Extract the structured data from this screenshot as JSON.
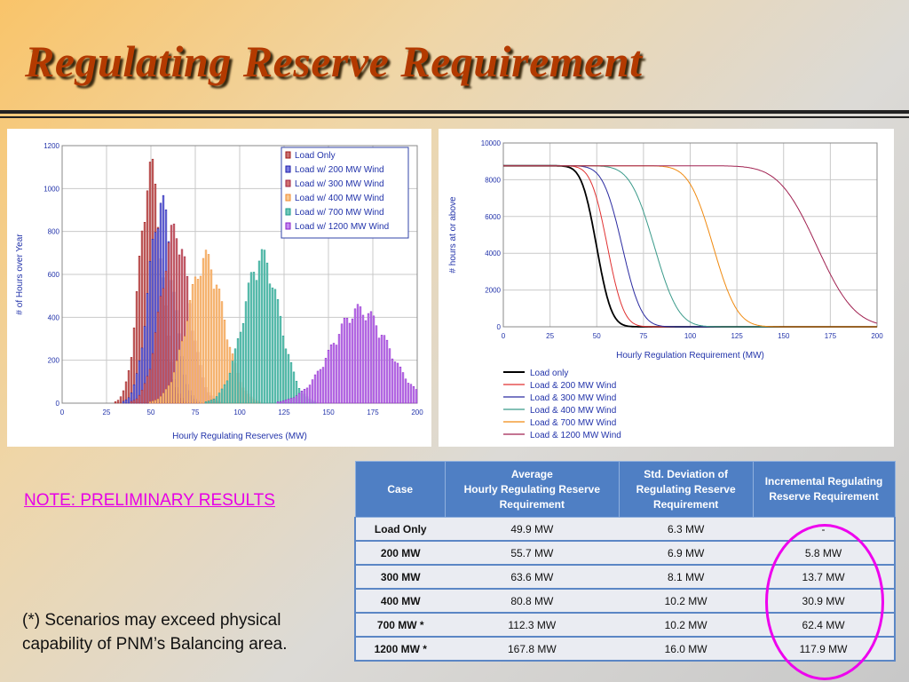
{
  "slide": {
    "title": "Regulating Reserve Requirement",
    "note": "NOTE: PRELIMINARY RESULTS",
    "footnote": "(*) Scenarios may exceed physical capability of PNM’s Balancing area.",
    "accent_colors": {
      "title": "#b33a00",
      "note": "#e600e6",
      "table_header": "#4f7fc4"
    }
  },
  "table": {
    "headers": [
      "Case",
      "Average\nHourly Regulating Reserve Requirement",
      "Std. Deviation of Regulating Reserve Requirement",
      "Incremental Regulating Reserve Requirement"
    ],
    "rows": [
      [
        "Load Only",
        "49.9 MW",
        "6.3 MW",
        "-"
      ],
      [
        "200 MW",
        "55.7 MW",
        "6.9 MW",
        "5.8 MW"
      ],
      [
        "300 MW",
        "63.6 MW",
        "8.1 MW",
        "13.7  MW"
      ],
      [
        "400 MW",
        "80.8 MW",
        "10.2 MW",
        "30.9  MW"
      ],
      [
        "700 MW *",
        "112.3 MW",
        "10.2 MW",
        "62.4  MW"
      ],
      [
        "1200 MW *",
        "167.8 MW",
        "16.0 MW",
        "117.9 MW"
      ]
    ]
  },
  "chart_data": [
    {
      "type": "bar",
      "title": "",
      "xlabel": "Hourly Regulating Reserves (MW)",
      "ylabel": "# of Hours over Year",
      "xlim": [
        0,
        200
      ],
      "ylim": [
        0,
        1200
      ],
      "xticks": [
        0,
        25,
        50,
        75,
        100,
        125,
        150,
        175,
        200
      ],
      "yticks": [
        0,
        200,
        400,
        600,
        800,
        1000,
        1200
      ],
      "grid": true,
      "legend_position": "top-right",
      "series": [
        {
          "name": "Load Only",
          "color": "#a01818",
          "fill": "#c97070",
          "mean": 49.9,
          "peak": 1050,
          "sd": 6.3
        },
        {
          "name": "Load w/ 200 MW Wind",
          "color": "#1a1aa8",
          "fill": "#7b7be0",
          "mean": 55.7,
          "peak": 900,
          "sd": 6.9
        },
        {
          "name": "Load w/ 300 MW Wind",
          "color": "#a02040",
          "fill": "#d07070",
          "mean": 63.6,
          "peak": 780,
          "sd": 8.1
        },
        {
          "name": "Load w/ 400 MW Wind",
          "color": "#f08a30",
          "fill": "#f8c890",
          "mean": 80.8,
          "peak": 650,
          "sd": 10.2
        },
        {
          "name": "Load w/ 700 MW Wind",
          "color": "#1a9a8a",
          "fill": "#70c8b8",
          "mean": 112.3,
          "peak": 660,
          "sd": 10.2
        },
        {
          "name": "Load w/ 1200 MW Wind",
          "color": "#8a20c8",
          "fill": "#c488f0",
          "mean": 167.8,
          "peak": 420,
          "sd": 16.0
        }
      ]
    },
    {
      "type": "line",
      "title": "",
      "xlabel": "Hourly Regulation Requirement (MW)",
      "ylabel": "# hours at or above",
      "xlim": [
        0,
        200
      ],
      "ylim": [
        0,
        10000
      ],
      "xticks": [
        0,
        25,
        50,
        75,
        100,
        125,
        150,
        175,
        200
      ],
      "yticks": [
        0,
        2000,
        4000,
        6000,
        8000,
        10000
      ],
      "grid": true,
      "legend_position": "bottom-left",
      "series": [
        {
          "name": "Load only",
          "color": "#000000",
          "mean": 49.9,
          "sd": 6.3,
          "max": 8760
        },
        {
          "name": "Load & 200 MW Wind",
          "color": "#e03030",
          "mean": 55.7,
          "sd": 6.9,
          "max": 8760
        },
        {
          "name": "Load & 300 MW Wind",
          "color": "#2a2aa0",
          "mean": 63.6,
          "sd": 8.1,
          "max": 8760
        },
        {
          "name": "Load & 400 MW Wind",
          "color": "#3a9a8a",
          "mean": 80.8,
          "sd": 10.2,
          "max": 8760
        },
        {
          "name": "Load & 700 MW Wind",
          "color": "#f08a10",
          "mean": 112.3,
          "sd": 10.2,
          "max": 8760
        },
        {
          "name": "Load & 1200 MW Wind",
          "color": "#a02050",
          "mean": 167.8,
          "sd": 16.0,
          "max": 8760
        }
      ]
    }
  ]
}
